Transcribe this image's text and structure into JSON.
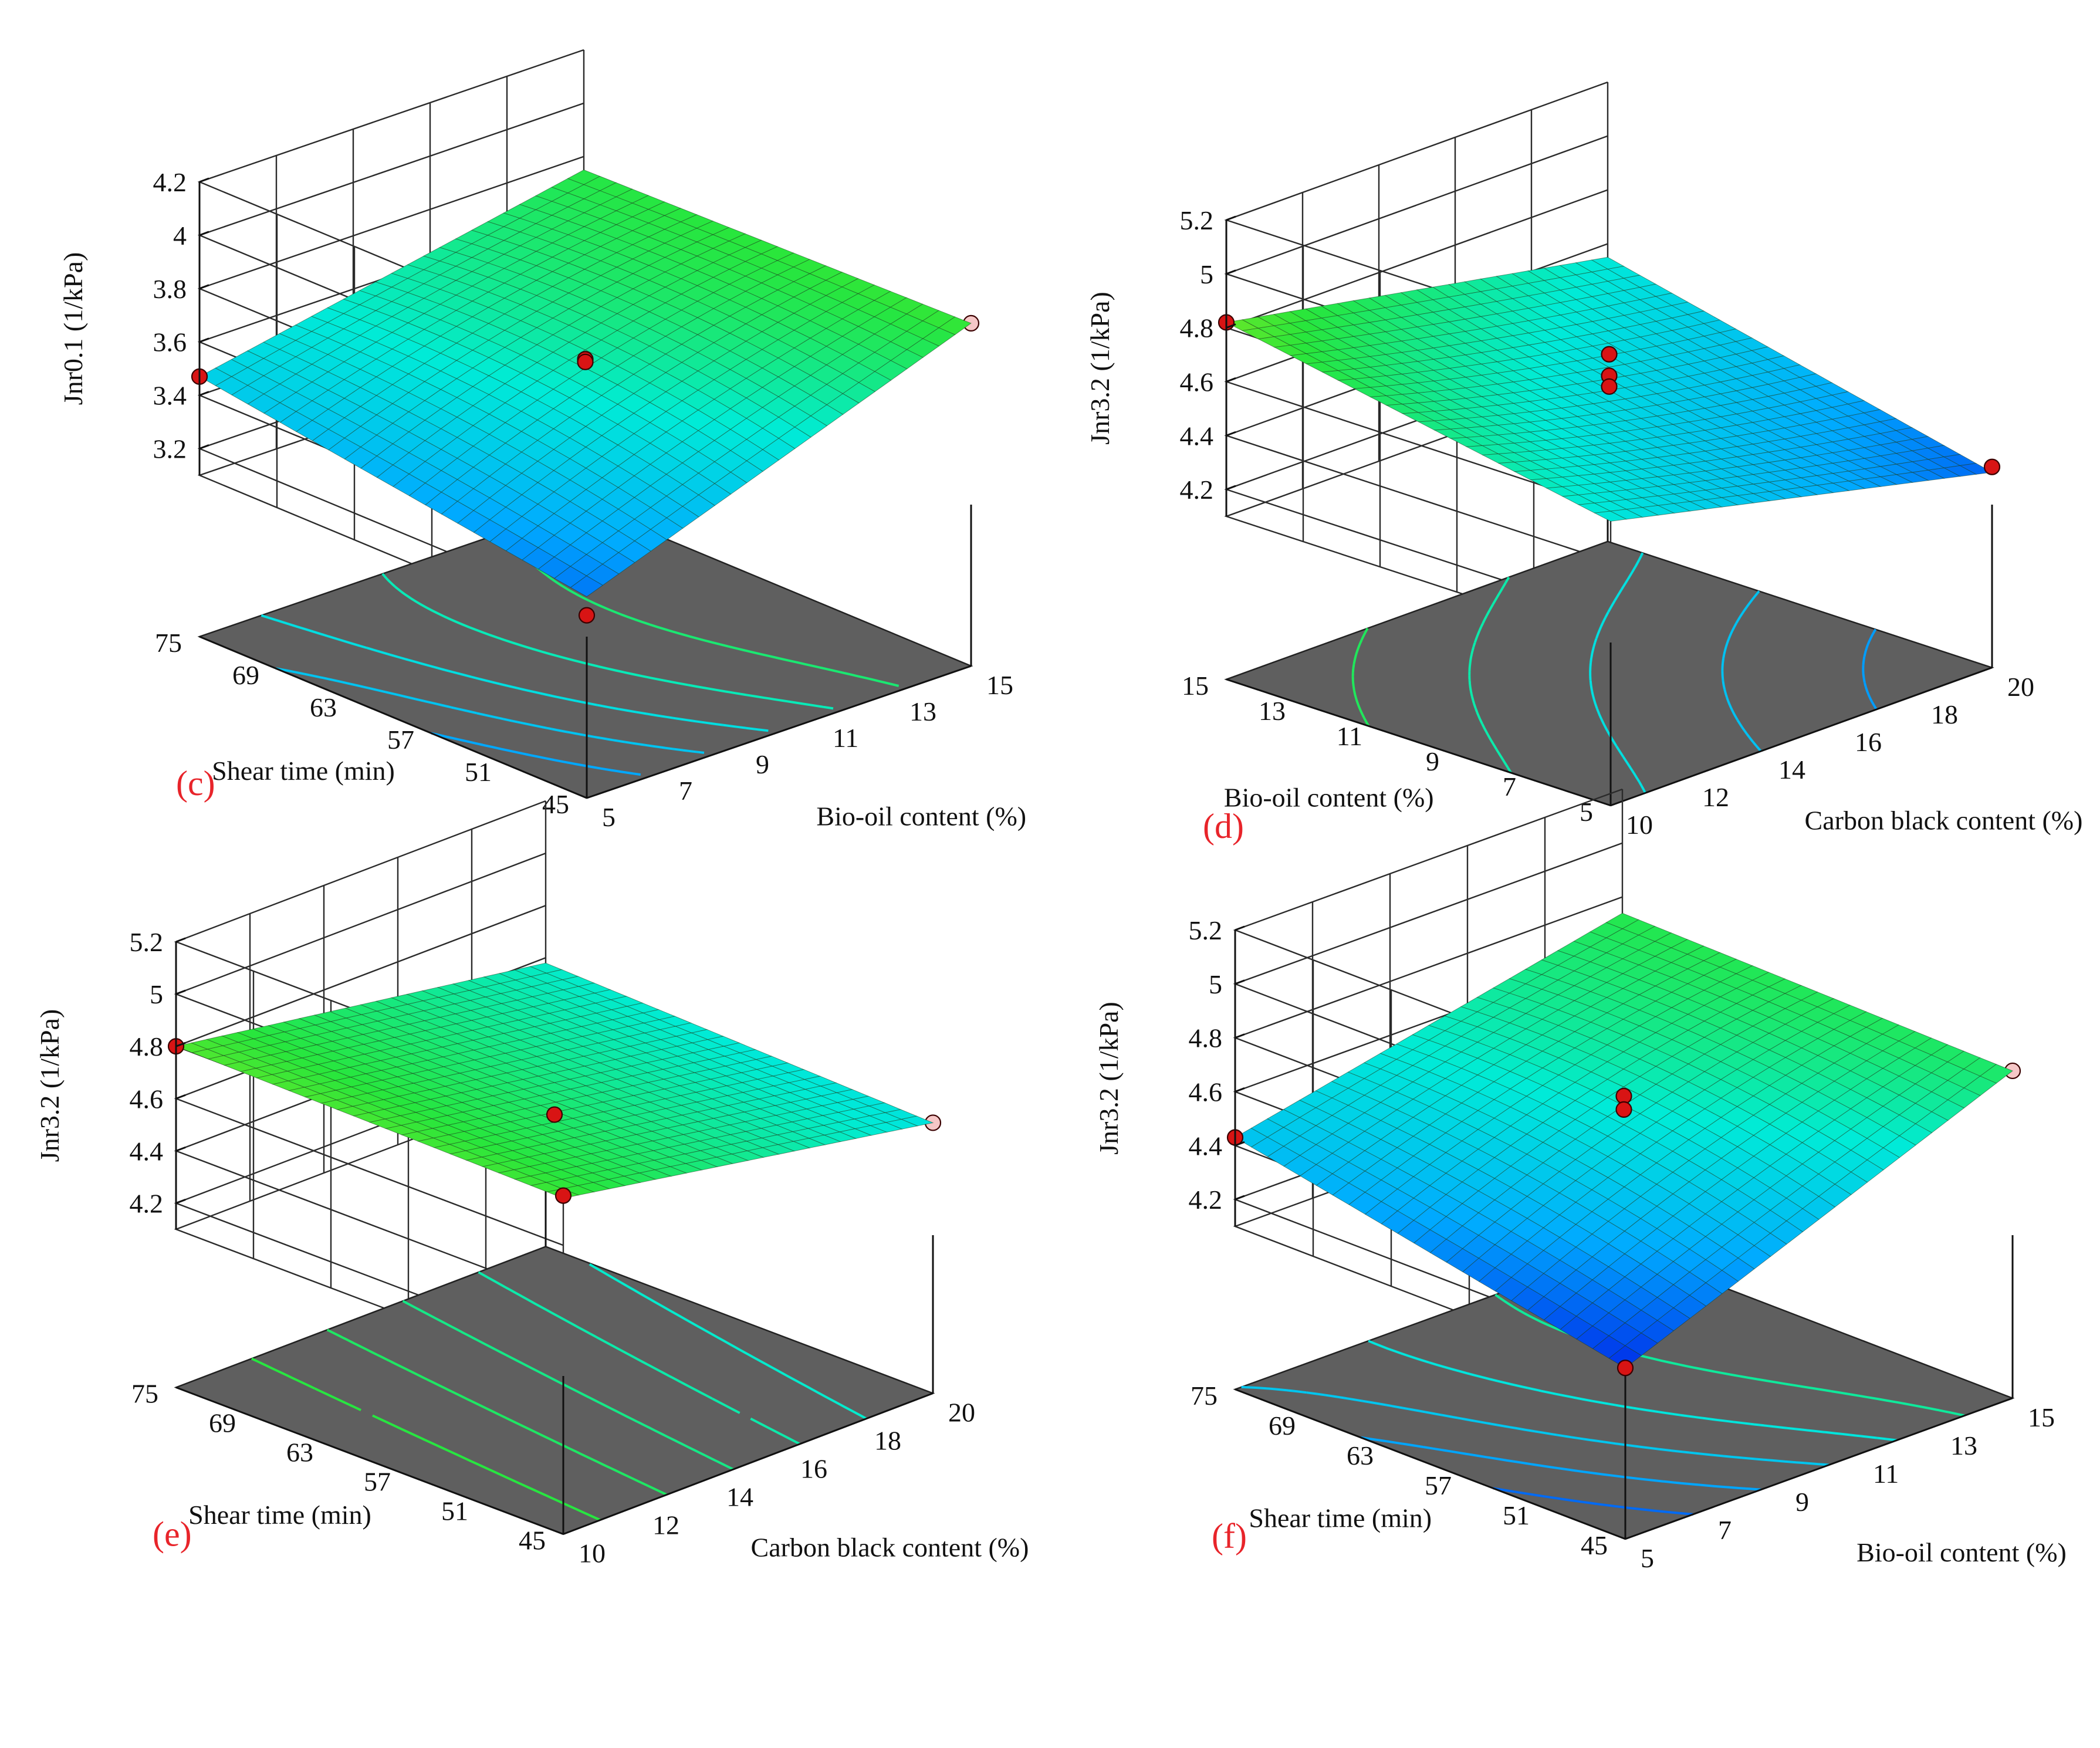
{
  "chart_data": [
    {
      "type": "surface",
      "panel": "(c)",
      "zlabel": "Jnr0.1 (1/kPa)",
      "xlabel": "Shear time (min)",
      "ylabel": "Bio-oil content (%)",
      "x_ticks": [
        "45",
        "51",
        "57",
        "63",
        "69",
        "75"
      ],
      "y_ticks": [
        "5",
        "7",
        "9",
        "11",
        "13",
        "15"
      ],
      "z_ticks": [
        "3.2",
        "3.4",
        "3.6",
        "3.8",
        "4",
        "4.2"
      ],
      "xlim": [
        45,
        75
      ],
      "ylim": [
        5,
        15
      ],
      "zlim": [
        3.1,
        4.2
      ],
      "corner_values": {
        "x_min_y_min": 3.25,
        "x_max_y_min": 3.47,
        "x_min_y_max": 3.78,
        "x_max_y_max": 3.75
      },
      "interaction": 0.25,
      "points": [
        {
          "x": 45,
          "y": 5,
          "z": 3.18,
          "kind": "above"
        },
        {
          "x": 75,
          "y": 5,
          "z": 3.47,
          "kind": "above"
        },
        {
          "x": 45,
          "y": 15,
          "z": 3.78,
          "kind": "below"
        },
        {
          "x": 60,
          "y": 10,
          "z": 3.59,
          "kind": "above"
        },
        {
          "x": 60,
          "y": 10,
          "z": 3.58,
          "kind": "above"
        }
      ]
    },
    {
      "type": "surface",
      "panel": "(d)",
      "zlabel": "Jnr3.2 (1/kPa)",
      "xlabel": "Bio-oil content (%)",
      "ylabel": "Carbon black content (%)",
      "x_ticks": [
        "5",
        "7",
        "9",
        "11",
        "13",
        "15"
      ],
      "y_ticks": [
        "10",
        "12",
        "14",
        "16",
        "18",
        "20"
      ],
      "z_ticks": [
        "4.2",
        "4.4",
        "4.6",
        "4.8",
        "5",
        "5.2"
      ],
      "xlim": [
        5,
        15
      ],
      "ylim": [
        10,
        20
      ],
      "zlim": [
        4.1,
        5.2
      ],
      "corner_values": {
        "x_min_y_min": 4.55,
        "x_max_y_min": 4.82,
        "x_min_y_max": 4.22,
        "x_max_y_max": 4.55
      },
      "interaction": -0.12,
      "points": [
        {
          "x": 15,
          "y": 10,
          "z": 4.82,
          "kind": "above"
        },
        {
          "x": 5,
          "y": 20,
          "z": 4.24,
          "kind": "above"
        },
        {
          "x": 10,
          "y": 15,
          "z": 4.68,
          "kind": "above"
        },
        {
          "x": 10,
          "y": 15,
          "z": 4.6,
          "kind": "above"
        },
        {
          "x": 10,
          "y": 15,
          "z": 4.56,
          "kind": "above"
        },
        {
          "x": 10,
          "y": 15,
          "z": 4.29,
          "kind": "below"
        }
      ]
    },
    {
      "type": "surface",
      "panel": "(e)",
      "zlabel": "Jnr3.2 (1/kPa)",
      "xlabel": "Shear time (min)",
      "ylabel": "Carbon black content (%)",
      "x_ticks": [
        "45",
        "51",
        "57",
        "63",
        "69",
        "75"
      ],
      "y_ticks": [
        "10",
        "12",
        "14",
        "16",
        "18",
        "20"
      ],
      "z_ticks": [
        "4.2",
        "4.4",
        "4.6",
        "4.8",
        "5",
        "5.2"
      ],
      "xlim": [
        45,
        75
      ],
      "ylim": [
        10,
        20
      ],
      "zlim": [
        4.1,
        5.2
      ],
      "corner_values": {
        "x_min_y_min": 4.78,
        "x_max_y_min": 4.8,
        "x_min_y_max": 4.53,
        "x_max_y_max": 4.58
      },
      "interaction": 0.0,
      "points": [
        {
          "x": 45,
          "y": 10,
          "z": 4.79,
          "kind": "above"
        },
        {
          "x": 75,
          "y": 10,
          "z": 4.8,
          "kind": "above"
        },
        {
          "x": 60,
          "y": 15,
          "z": 4.55,
          "kind": "above"
        },
        {
          "x": 60,
          "y": 15,
          "z": 4.52,
          "kind": "below"
        },
        {
          "x": 45,
          "y": 20,
          "z": 4.53,
          "kind": "below"
        }
      ]
    },
    {
      "type": "surface",
      "panel": "(f)",
      "zlabel": "Jnr3.2 (1/kPa)",
      "xlabel": "Shear time (min)",
      "ylabel": "Bio-oil content (%)",
      "x_ticks": [
        "45",
        "51",
        "57",
        "63",
        "69",
        "75"
      ],
      "y_ticks": [
        "5",
        "7",
        "9",
        "11",
        "13",
        "15"
      ],
      "z_ticks": [
        "4.2",
        "4.4",
        "4.6",
        "4.8",
        "5",
        "5.2"
      ],
      "xlim": [
        45,
        75
      ],
      "ylim": [
        5,
        15
      ],
      "zlim": [
        4.1,
        5.2
      ],
      "corner_values": {
        "x_min_y_min": 4.13,
        "x_max_y_min": 4.43,
        "x_min_y_max": 4.71,
        "x_max_y_max": 4.74
      },
      "interaction": 0.25,
      "points": [
        {
          "x": 45,
          "y": 5,
          "z": 4.13,
          "kind": "above"
        },
        {
          "x": 75,
          "y": 5,
          "z": 4.43,
          "kind": "above"
        },
        {
          "x": 45,
          "y": 15,
          "z": 4.71,
          "kind": "below"
        },
        {
          "x": 60,
          "y": 10,
          "z": 4.6,
          "kind": "above"
        },
        {
          "x": 60,
          "y": 10,
          "z": 4.55,
          "kind": "above"
        }
      ]
    }
  ]
}
